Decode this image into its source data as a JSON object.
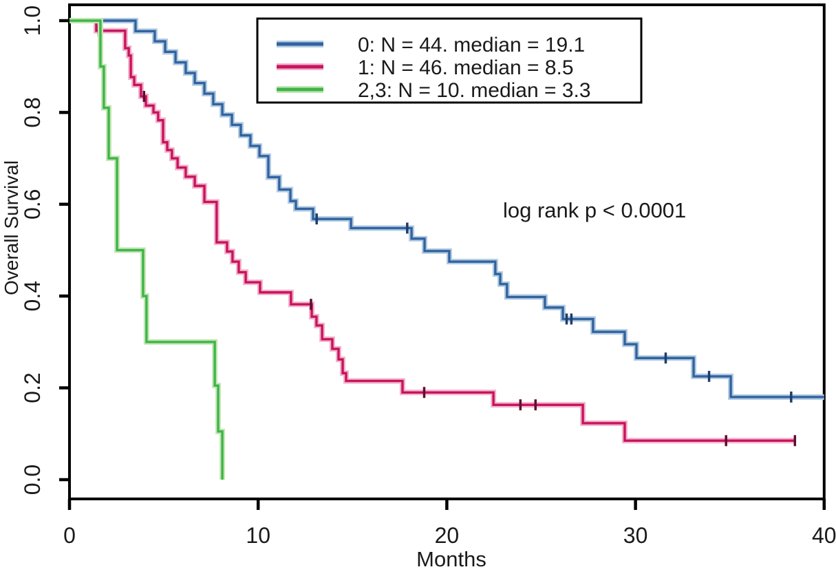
{
  "figure": {
    "background": "#ffffff"
  },
  "annotation": {
    "text": "log rank p < 0.0001"
  },
  "chart_data": {
    "type": "line",
    "subtype": "kaplan-meier-step",
    "title": "",
    "xlabel": "Months",
    "ylabel": "Overall Survival",
    "xlim": [
      0,
      40
    ],
    "ylim": [
      0.0,
      1.0
    ],
    "grid": false,
    "legend_position": "top-center-inside-box",
    "xtick_values": [
      0,
      10,
      20,
      30,
      40
    ],
    "xtick_labels": [
      "0",
      "10",
      "20",
      "30",
      "40"
    ],
    "ytick_values": [
      0.0,
      0.2,
      0.4,
      0.6,
      0.8,
      1.0
    ],
    "ytick_labels": [
      "0.0",
      "0.2",
      "0.4",
      "0.6",
      "0.8",
      "1.0"
    ],
    "annotation": "log rank p < 0.0001",
    "series": [
      {
        "label": "0: N = 44. median = 19.1",
        "group": "0",
        "n": 44,
        "median_months": 19.1,
        "color": "#31639f",
        "halo": "#b3cbe2",
        "censor_color": "#1f3d6b",
        "start": [
          0,
          1.0
        ],
        "end_month": 40.0,
        "drops": [
          [
            3.5,
            0.977
          ],
          [
            4.52,
            0.955
          ],
          [
            5.07,
            0.932
          ],
          [
            5.62,
            0.909
          ],
          [
            6.16,
            0.886
          ],
          [
            6.64,
            0.864
          ],
          [
            7.15,
            0.841
          ],
          [
            7.62,
            0.818
          ],
          [
            8.1,
            0.795
          ],
          [
            8.61,
            0.773
          ],
          [
            9.08,
            0.75
          ],
          [
            9.59,
            0.727
          ],
          [
            10.07,
            0.705
          ],
          [
            10.54,
            0.659
          ],
          [
            11.12,
            0.632
          ],
          [
            11.71,
            0.607
          ],
          [
            12.0,
            0.59
          ],
          [
            12.91,
            0.568
          ],
          [
            14.92,
            0.548
          ],
          [
            18.13,
            0.525
          ],
          [
            18.82,
            0.498
          ],
          [
            20.13,
            0.475
          ],
          [
            22.57,
            0.448
          ],
          [
            22.83,
            0.426
          ],
          [
            23.19,
            0.398
          ],
          [
            25.2,
            0.375
          ],
          [
            26.15,
            0.35
          ],
          [
            27.75,
            0.322
          ],
          [
            29.43,
            0.295
          ],
          [
            30.05,
            0.265
          ],
          [
            33.08,
            0.225
          ],
          [
            35.05,
            0.18
          ]
        ],
        "censors": [
          [
            13.1,
            0.568
          ],
          [
            17.9,
            0.548
          ],
          [
            26.35,
            0.35
          ],
          [
            26.6,
            0.35
          ],
          [
            31.6,
            0.265
          ],
          [
            33.9,
            0.225
          ],
          [
            38.25,
            0.18
          ]
        ]
      },
      {
        "label": "1: N = 46. median = 8.5",
        "group": "1",
        "n": 46,
        "median_months": 8.5,
        "color": "#c9135e",
        "halo": "#f0b4ca",
        "censor_color": "#5f0e32",
        "start": [
          0,
          1.0
        ],
        "end_month": 38.5,
        "drops": [
          [
            1.42,
            0.978
          ],
          [
            2.95,
            0.94
          ],
          [
            3.14,
            0.924
          ],
          [
            3.25,
            0.877
          ],
          [
            3.43,
            0.86
          ],
          [
            3.79,
            0.835
          ],
          [
            4.05,
            0.815
          ],
          [
            4.45,
            0.8
          ],
          [
            4.7,
            0.783
          ],
          [
            4.96,
            0.735
          ],
          [
            5.18,
            0.718
          ],
          [
            5.43,
            0.7
          ],
          [
            5.73,
            0.68
          ],
          [
            6.16,
            0.66
          ],
          [
            6.64,
            0.64
          ],
          [
            7.15,
            0.605
          ],
          [
            7.8,
            0.517
          ],
          [
            8.35,
            0.497
          ],
          [
            8.64,
            0.475
          ],
          [
            8.97,
            0.452
          ],
          [
            9.34,
            0.43
          ],
          [
            10.1,
            0.408
          ],
          [
            11.74,
            0.382
          ],
          [
            12.84,
            0.355
          ],
          [
            13.09,
            0.336
          ],
          [
            13.39,
            0.306
          ],
          [
            13.93,
            0.285
          ],
          [
            14.26,
            0.262
          ],
          [
            14.48,
            0.232
          ],
          [
            14.66,
            0.215
          ],
          [
            17.65,
            0.19
          ],
          [
            22.47,
            0.163
          ],
          [
            27.21,
            0.123
          ],
          [
            29.43,
            0.085
          ]
        ],
        "censors": [
          [
            1.55,
            0.978
          ],
          [
            3.95,
            0.835
          ],
          [
            12.8,
            0.382
          ],
          [
            18.8,
            0.19
          ],
          [
            23.9,
            0.163
          ],
          [
            24.7,
            0.163
          ],
          [
            34.8,
            0.085
          ],
          [
            38.45,
            0.085
          ]
        ]
      },
      {
        "label": "2,3: N = 10. median = 3.3",
        "group": "2,3",
        "n": 10,
        "median_months": 3.3,
        "color": "#3eb549",
        "halo": "#c6e6b6",
        "censor_color": "#2e7d32",
        "start": [
          0,
          1.0
        ],
        "end_month": 8.1,
        "drops": [
          [
            1.64,
            0.9
          ],
          [
            1.82,
            0.81
          ],
          [
            2.08,
            0.7
          ],
          [
            2.52,
            0.5
          ],
          [
            3.9,
            0.4
          ],
          [
            4.08,
            0.3
          ],
          [
            7.7,
            0.205
          ],
          [
            7.88,
            0.105
          ],
          [
            8.1,
            0.0
          ]
        ],
        "censors": []
      }
    ]
  }
}
